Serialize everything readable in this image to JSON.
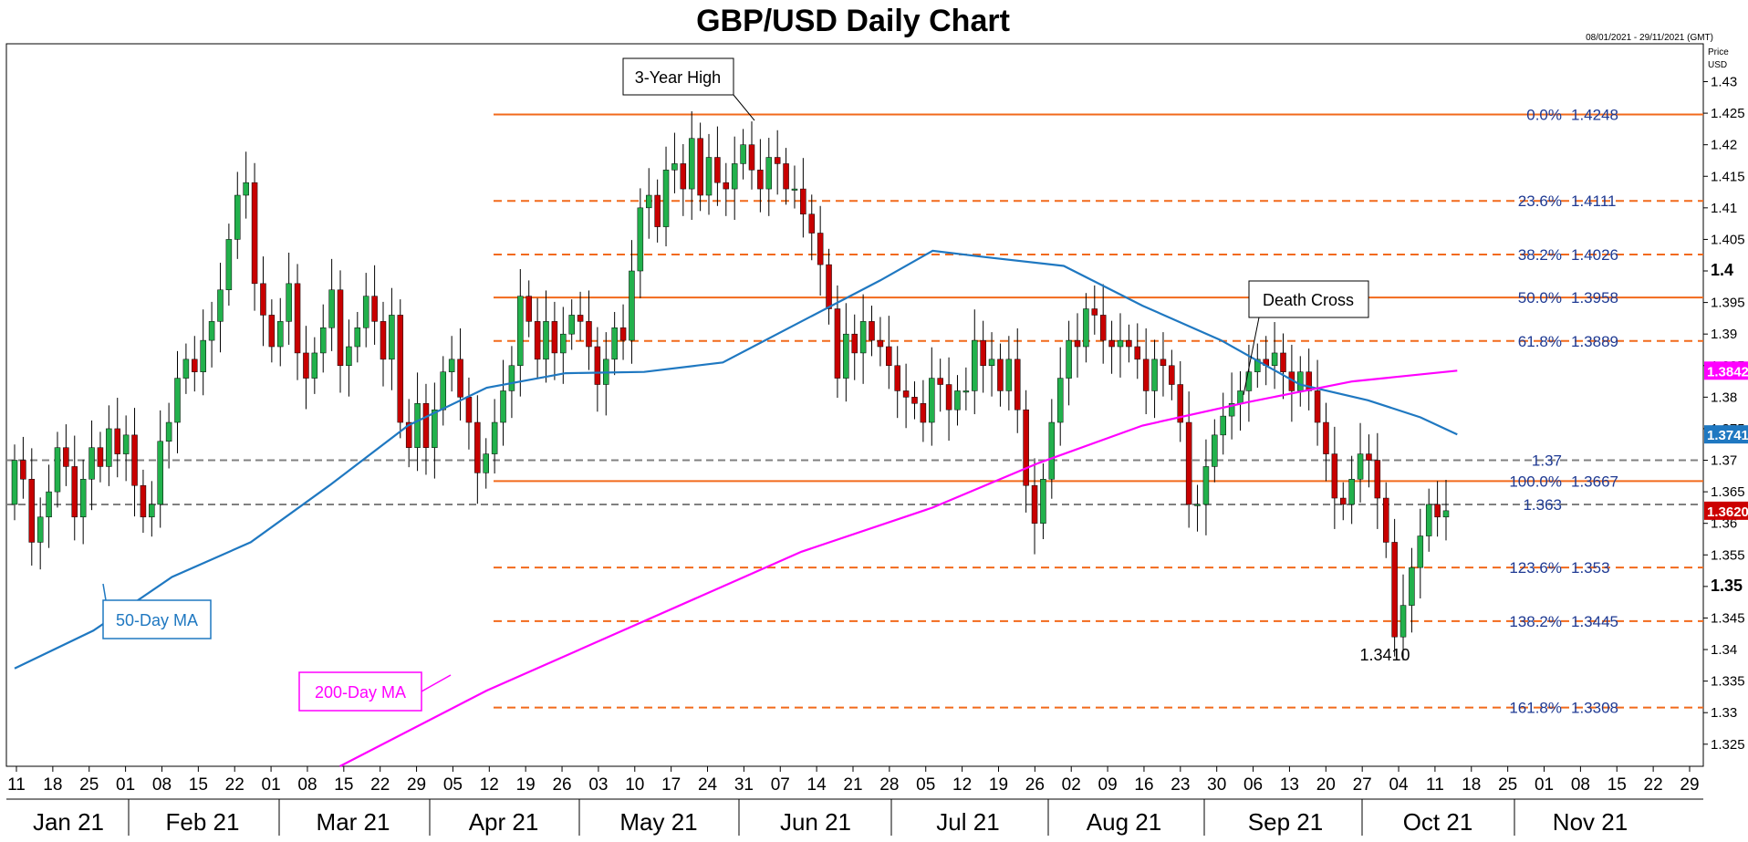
{
  "chart_data": {
    "type": "candlestick",
    "title": "GBP/USD Daily Chart",
    "date_range": "08/01/2021 - 29/11/2021 (GMT)",
    "price_axis_label_line1": "Price",
    "price_axis_label_line2": "USD",
    "ylim": [
      1.3215,
      1.436
    ],
    "y_ticks": [
      "1.43",
      "1.425",
      "1.42",
      "1.415",
      "1.41",
      "1.405",
      "1.4",
      "1.395",
      "1.39",
      "1.385",
      "1.38",
      "1.375",
      "1.37",
      "1.365",
      "1.36",
      "1.355",
      "1.35",
      "1.345",
      "1.34",
      "1.335",
      "1.33",
      "1.325"
    ],
    "y_ticks_bold": [
      "1.4",
      "1.35"
    ],
    "x_day_labels": [
      "11",
      "18",
      "25",
      "01",
      "08",
      "15",
      "22",
      "01",
      "08",
      "15",
      "22",
      "29",
      "05",
      "12",
      "19",
      "26",
      "03",
      "10",
      "17",
      "24",
      "31",
      "07",
      "14",
      "21",
      "28",
      "05",
      "12",
      "19",
      "26",
      "02",
      "09",
      "16",
      "23",
      "30",
      "06",
      "13",
      "20",
      "27",
      "04",
      "11",
      "18",
      "25",
      "01",
      "08",
      "15",
      "22",
      "29"
    ],
    "months": [
      "Jan 21",
      "Feb 21",
      "Mar 21",
      "Apr 21",
      "May 21",
      "Jun 21",
      "Jul 21",
      "Aug 21",
      "Sep 21",
      "Oct 21",
      "Nov 21"
    ],
    "fibonacci_levels": [
      {
        "label": "0.0%",
        "value_text": "1.4248",
        "price": 1.4248,
        "style": "solid"
      },
      {
        "label": "23.6%",
        "value_text": "1.4111",
        "price": 1.4111,
        "style": "dashed"
      },
      {
        "label": "38.2%",
        "value_text": "1.4026",
        "price": 1.4026,
        "style": "dashed"
      },
      {
        "label": "50.0%",
        "value_text": "1.3958",
        "price": 1.3958,
        "style": "solid"
      },
      {
        "label": "61.8%",
        "value_text": "1.3889",
        "price": 1.3889,
        "style": "dashed"
      },
      {
        "label": "100.0%",
        "value_text": "1.3667",
        "price": 1.3667,
        "style": "solid"
      },
      {
        "label": "123.6%",
        "value_text": "1.353",
        "price": 1.353,
        "style": "dashed"
      },
      {
        "label": "138.2%",
        "value_text": "1.3445",
        "price": 1.3445,
        "style": "dashed"
      },
      {
        "label": "161.8%",
        "value_text": "1.3308",
        "price": 1.3308,
        "style": "dashed"
      }
    ],
    "horizontal_levels": [
      {
        "value_text": "1.37",
        "price": 1.37
      },
      {
        "value_text": "1.363",
        "price": 1.363
      }
    ],
    "price_tags": [
      {
        "text": "1.3842",
        "price": 1.3842,
        "color": "#ff00ff"
      },
      {
        "text": "1.3741",
        "price": 1.3741,
        "color": "#1f78c1"
      },
      {
        "text": "1.3620",
        "price": 1.362,
        "color": "#cc0000"
      }
    ],
    "annotations": {
      "three_year_high": "3-Year High",
      "death_cross": "Death Cross",
      "low_value": "1.3410",
      "ma50": "50-Day MA",
      "ma200": "200-Day MA"
    },
    "series": [
      {
        "name": "50-Day MA",
        "color": "#1f78c1",
        "points": [
          [
            0,
            1.337
          ],
          [
            15,
            1.343
          ],
          [
            30,
            1.3515
          ],
          [
            45,
            1.357
          ],
          [
            60,
            1.366
          ],
          [
            75,
            1.3755
          ],
          [
            90,
            1.3815
          ],
          [
            105,
            1.3838
          ],
          [
            120,
            1.384
          ],
          [
            135,
            1.3855
          ],
          [
            150,
            1.392
          ],
          [
            165,
            1.3985
          ],
          [
            175,
            1.4032
          ],
          [
            185,
            1.4022
          ],
          [
            200,
            1.4008
          ],
          [
            215,
            1.3945
          ],
          [
            230,
            1.389
          ],
          [
            245,
            1.382
          ],
          [
            258,
            1.3795
          ],
          [
            268,
            1.3768
          ],
          [
            275,
            1.3741
          ]
        ]
      },
      {
        "name": "200-Day MA",
        "color": "#ff00ff",
        "points": [
          [
            62,
            1.3215
          ],
          [
            90,
            1.3335
          ],
          [
            120,
            1.3445
          ],
          [
            150,
            1.3555
          ],
          [
            175,
            1.3625
          ],
          [
            195,
            1.3695
          ],
          [
            215,
            1.3755
          ],
          [
            235,
            1.3792
          ],
          [
            255,
            1.3825
          ],
          [
            275,
            1.3842
          ]
        ]
      }
    ],
    "ohlc_close": [
      1.37,
      1.367,
      1.357,
      1.361,
      1.365,
      1.372,
      1.369,
      1.361,
      1.367,
      1.372,
      1.369,
      1.375,
      1.371,
      1.374,
      1.366,
      1.361,
      1.363,
      1.373,
      1.376,
      1.383,
      1.386,
      1.384,
      1.389,
      1.392,
      1.397,
      1.405,
      1.412,
      1.414,
      1.398,
      1.393,
      1.388,
      1.392,
      1.398,
      1.387,
      1.383,
      1.387,
      1.391,
      1.397,
      1.385,
      1.388,
      1.391,
      1.396,
      1.392,
      1.386,
      1.393,
      1.376,
      1.372,
      1.379,
      1.372,
      1.378,
      1.384,
      1.386,
      1.38,
      1.376,
      1.368,
      1.371,
      1.376,
      1.381,
      1.385,
      1.396,
      1.392,
      1.386,
      1.392,
      1.387,
      1.39,
      1.393,
      1.392,
      1.388,
      1.382,
      1.386,
      1.391,
      1.389,
      1.4,
      1.41,
      1.412,
      1.407,
      1.416,
      1.417,
      1.413,
      1.421,
      1.412,
      1.418,
      1.414,
      1.413,
      1.417,
      1.42,
      1.416,
      1.413,
      1.418,
      1.417,
      1.413,
      1.413,
      1.409,
      1.406,
      1.401,
      1.394,
      1.383,
      1.39,
      1.387,
      1.392,
      1.389,
      1.388,
      1.385,
      1.381,
      1.38,
      1.379,
      1.376,
      1.383,
      1.382,
      1.378,
      1.381,
      1.381,
      1.389,
      1.385,
      1.386,
      1.381,
      1.386,
      1.378,
      1.366,
      1.36,
      1.367,
      1.376,
      1.383,
      1.389,
      1.388,
      1.394,
      1.393,
      1.389,
      1.388,
      1.389,
      1.388,
      1.386,
      1.381,
      1.386,
      1.385,
      1.382,
      1.376,
      1.363,
      1.363,
      1.369,
      1.374,
      1.377,
      1.379,
      1.381,
      1.384,
      1.386,
      1.385,
      1.387,
      1.384,
      1.381,
      1.384,
      1.381,
      1.376,
      1.371,
      1.364,
      1.363,
      1.367,
      1.371,
      1.37,
      1.364,
      1.357,
      1.342,
      1.347,
      1.353,
      1.358,
      1.363,
      1.361,
      1.362
    ],
    "ohlc_open": [
      1.363,
      1.37,
      1.367,
      1.357,
      1.361,
      1.365,
      1.372,
      1.369,
      1.361,
      1.367,
      1.372,
      1.369,
      1.375,
      1.371,
      1.374,
      1.366,
      1.361,
      1.363,
      1.373,
      1.376,
      1.383,
      1.386,
      1.384,
      1.389,
      1.392,
      1.397,
      1.405,
      1.412,
      1.414,
      1.398,
      1.393,
      1.388,
      1.392,
      1.398,
      1.387,
      1.383,
      1.387,
      1.391,
      1.397,
      1.385,
      1.388,
      1.391,
      1.396,
      1.392,
      1.386,
      1.393,
      1.376,
      1.372,
      1.379,
      1.372,
      1.378,
      1.384,
      1.386,
      1.38,
      1.376,
      1.368,
      1.371,
      1.376,
      1.381,
      1.385,
      1.396,
      1.392,
      1.386,
      1.392,
      1.387,
      1.39,
      1.393,
      1.392,
      1.388,
      1.382,
      1.386,
      1.391,
      1.389,
      1.4,
      1.41,
      1.412,
      1.407,
      1.416,
      1.417,
      1.413,
      1.421,
      1.412,
      1.418,
      1.414,
      1.413,
      1.417,
      1.42,
      1.416,
      1.413,
      1.418,
      1.417,
      1.413,
      1.413,
      1.409,
      1.406,
      1.401,
      1.394,
      1.383,
      1.39,
      1.387,
      1.392,
      1.389,
      1.388,
      1.385,
      1.381,
      1.38,
      1.379,
      1.376,
      1.383,
      1.382,
      1.378,
      1.381,
      1.381,
      1.389,
      1.385,
      1.386,
      1.381,
      1.386,
      1.378,
      1.366,
      1.36,
      1.367,
      1.376,
      1.383,
      1.389,
      1.388,
      1.394,
      1.393,
      1.389,
      1.388,
      1.389,
      1.388,
      1.386,
      1.381,
      1.386,
      1.385,
      1.382,
      1.376,
      1.363,
      1.363,
      1.369,
      1.374,
      1.377,
      1.379,
      1.381,
      1.384,
      1.386,
      1.385,
      1.387,
      1.384,
      1.381,
      1.384,
      1.381,
      1.376,
      1.371,
      1.364,
      1.363,
      1.367,
      1.371,
      1.37,
      1.364,
      1.357,
      1.342,
      1.347,
      1.353,
      1.358,
      1.363,
      1.361
    ]
  }
}
